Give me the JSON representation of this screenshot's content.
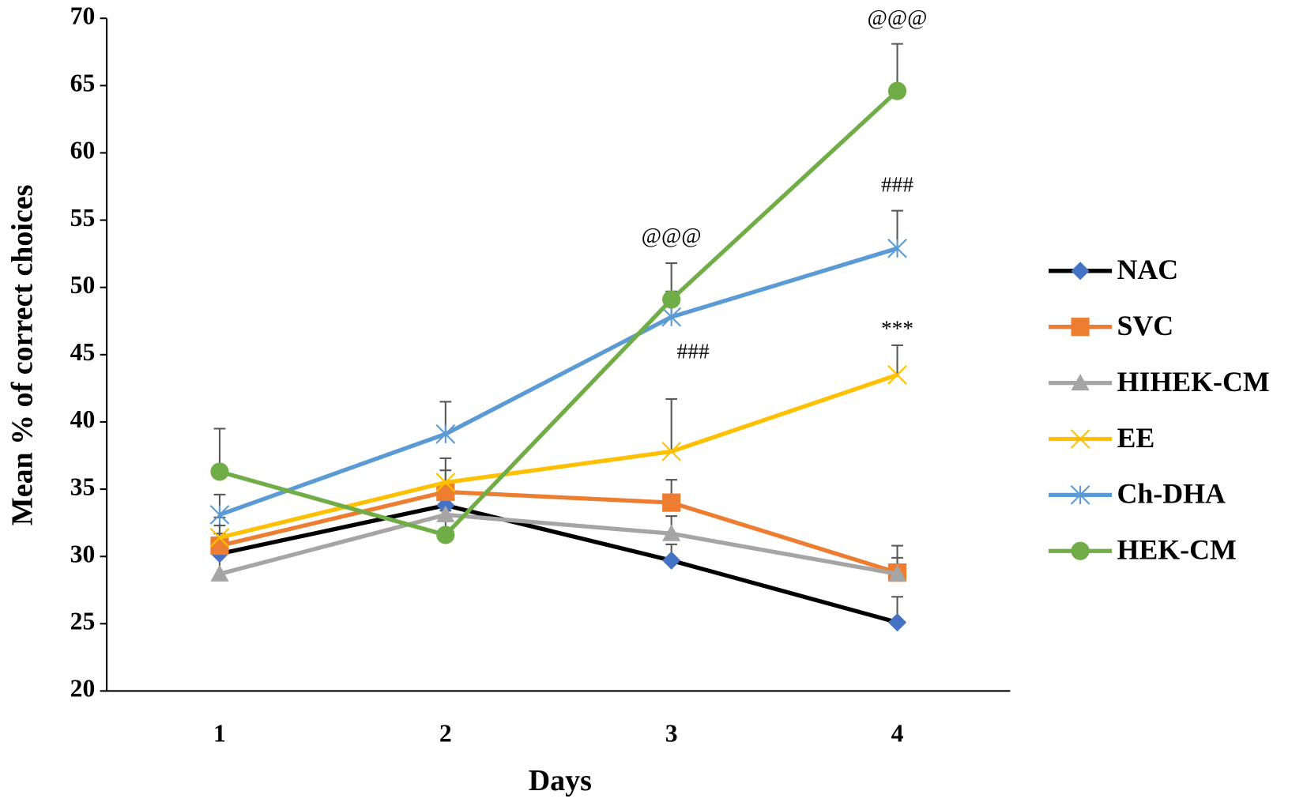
{
  "chart_data": {
    "type": "line",
    "x_label": "Days",
    "y_label": "Mean % of correct choices",
    "categories": [
      "1",
      "2",
      "3",
      "4"
    ],
    "ylim": [
      20,
      70
    ],
    "yticks": [
      20,
      25,
      30,
      35,
      40,
      45,
      50,
      55,
      60,
      65,
      70
    ],
    "legend": "right",
    "series": [
      {
        "name": "NAC",
        "color": "#000000",
        "marker_color": "#4472c4",
        "marker": "diamond",
        "values": [
          30.2,
          33.8,
          29.7,
          25.1
        ],
        "errors": [
          1.5,
          1.5,
          1.2,
          1.9
        ]
      },
      {
        "name": "SVC",
        "color": "#ed7d31",
        "marker_color": "#ed7d31",
        "marker": "square",
        "values": [
          30.8,
          34.8,
          34.0,
          28.8
        ],
        "errors": [
          1.5,
          1.6,
          1.7,
          2.0
        ]
      },
      {
        "name": "HIHEK-CM",
        "color": "#a5a5a5",
        "marker_color": "#a5a5a5",
        "marker": "triangle",
        "values": [
          28.7,
          33.1,
          31.7,
          28.7
        ],
        "errors": [
          1.4,
          1.5,
          1.3,
          1.2
        ]
      },
      {
        "name": "EE",
        "color": "#ffc000",
        "marker_color": "#ffc000",
        "marker": "x",
        "values": [
          31.4,
          35.5,
          37.8,
          43.5
        ],
        "errors": [
          1.5,
          1.8,
          3.9,
          2.2
        ]
      },
      {
        "name": "Ch-DHA",
        "color": "#5b9bd5",
        "marker_color": "#5b9bd5",
        "marker": "asterisk",
        "values": [
          33.1,
          39.1,
          47.8,
          52.9
        ],
        "errors": [
          1.5,
          2.4,
          1.9,
          2.8
        ]
      },
      {
        "name": "HEK-CM",
        "color": "#70ad47",
        "marker_color": "#70ad47",
        "marker": "circle",
        "values": [
          36.3,
          31.6,
          49.1,
          64.6
        ],
        "errors": [
          3.2,
          1.8,
          2.7,
          3.5
        ]
      }
    ],
    "annotations": [
      {
        "text": "@@@",
        "category": 2,
        "y": 53.7
      },
      {
        "text": "###",
        "category": 2,
        "y": 45.1
      },
      {
        "text": "@@@",
        "category": 3,
        "y": 69.9
      },
      {
        "text": "###",
        "category": 3,
        "y": 57.5
      },
      {
        "text": "***",
        "category": 3,
        "y": 46.8
      }
    ]
  }
}
